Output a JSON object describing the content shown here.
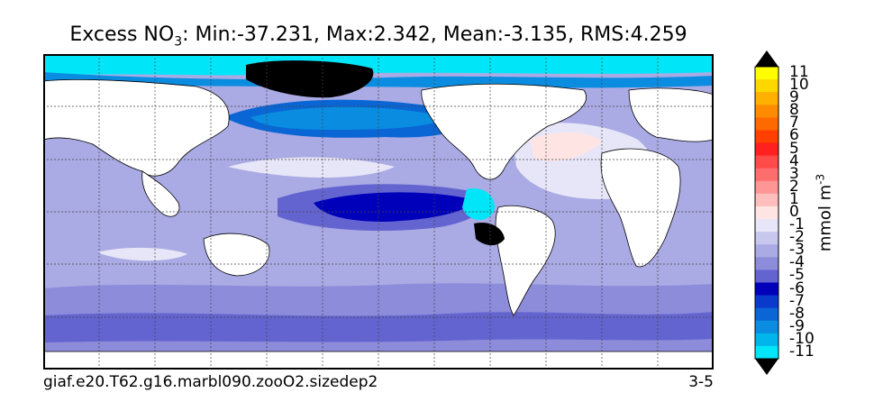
{
  "title": {
    "prefix": "Excess NO",
    "subscript": "3",
    "stats": ": Min:-37.231, Max:2.342, Mean:-3.135, RMS:4.259"
  },
  "footer": {
    "case_name": "giaf.e20.T62.g16.marbl090.zooO2.sizedep2",
    "years": "3-5"
  },
  "colorbar": {
    "unit": "mmol m",
    "unit_exponent": "-3",
    "labels": [
      "11",
      "10",
      "9",
      "8",
      "7",
      "6",
      "5",
      "4",
      "3",
      "2",
      "1",
      "0",
      "-1",
      "-2",
      "-3",
      "-4",
      "-5",
      "-6",
      "-7",
      "-8",
      "-9",
      "-10",
      "-11"
    ],
    "colors": [
      "#ffff00",
      "#ffd700",
      "#ffb000",
      "#ff8c00",
      "#ff6a00",
      "#ff4000",
      "#ff2020",
      "#ff4a4a",
      "#ff6e6e",
      "#ff9696",
      "#ffbebe",
      "#ffe4e4",
      "#e6e6f8",
      "#c8c8ee",
      "#aaaae4",
      "#8c8cda",
      "#6464d0",
      "#0000bb",
      "#0a3acc",
      "#0a66d4",
      "#0a8ce0",
      "#00b4ec",
      "#00e6f8"
    ],
    "over_color": "#000000",
    "under_color": "#000000"
  },
  "map": {
    "land_color": "#ffffff",
    "missing_color": "#000000",
    "graticule": true
  }
}
